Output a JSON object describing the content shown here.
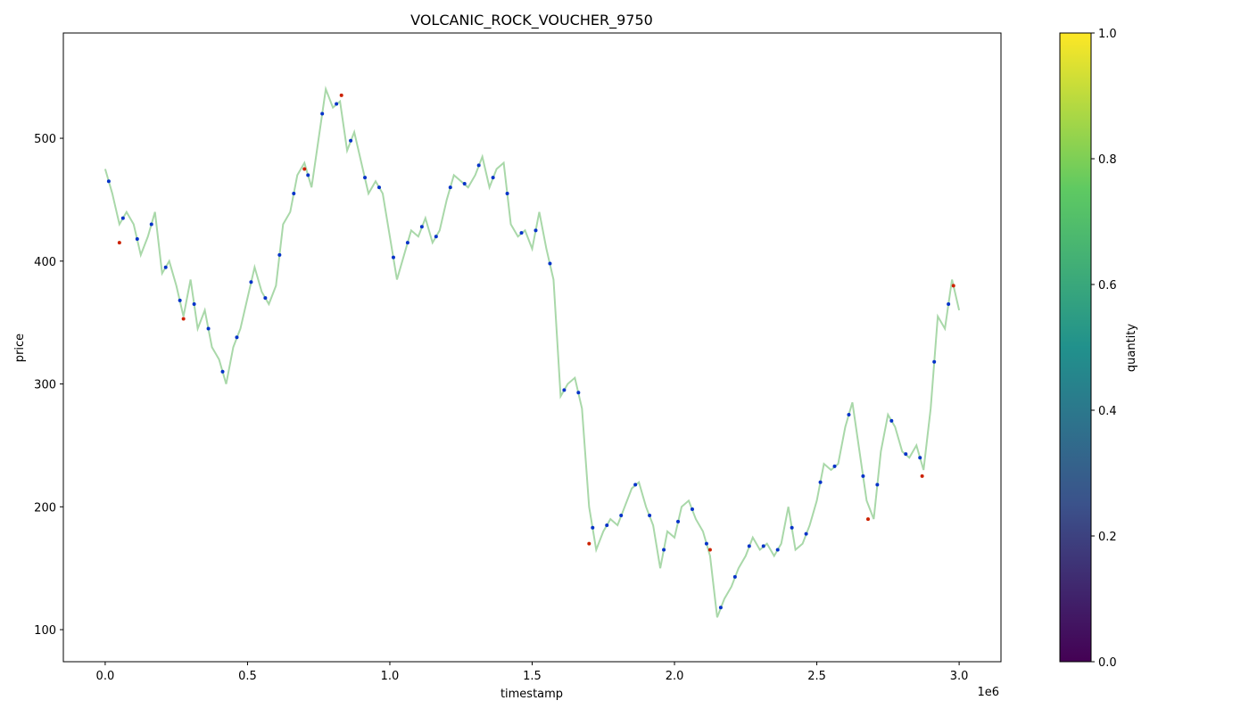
{
  "chart_data": {
    "type": "line_scatter",
    "title": "VOLCANIC_ROCK_VOUCHER_9750",
    "x_label": "timestamp",
    "y_label": "price",
    "x_offset_label": "1e6",
    "xlim": [
      -147000,
      3147000
    ],
    "ylim": [
      73.9,
      585.7
    ],
    "xticks": [
      {
        "value": 0,
        "label": "0.0"
      },
      {
        "value": 500000,
        "label": "0.5"
      },
      {
        "value": 1000000,
        "label": "1.0"
      },
      {
        "value": 1500000,
        "label": "1.5"
      },
      {
        "value": 2000000,
        "label": "2.0"
      },
      {
        "value": 2500000,
        "label": "2.5"
      },
      {
        "value": 3000000,
        "label": "3.0"
      }
    ],
    "yticks": [
      100,
      200,
      300,
      400,
      500
    ],
    "colorbar": {
      "label": "quantity",
      "colormap": "viridis",
      "lim": [
        0,
        1
      ],
      "ticks": [
        {
          "value": 0,
          "label": "0.0"
        },
        {
          "value": 0.2,
          "label": "0.2"
        },
        {
          "value": 0.4,
          "label": "0.4"
        },
        {
          "value": 0.6,
          "label": "0.6"
        },
        {
          "value": 0.8,
          "label": "0.8"
        },
        {
          "value": 1,
          "label": "1.0"
        }
      ]
    },
    "series": [
      {
        "kind": "line",
        "color": "#a9d8a9",
        "x": [
          0,
          25000,
          50000,
          75000,
          100000,
          125000,
          150000,
          175000,
          200000,
          225000,
          250000,
          275000,
          300000,
          325000,
          350000,
          375000,
          400000,
          425000,
          450000,
          475000,
          500000,
          525000,
          550000,
          575000,
          600000,
          625000,
          650000,
          675000,
          700000,
          725000,
          750000,
          775000,
          800000,
          825000,
          850000,
          875000,
          900000,
          925000,
          950000,
          975000,
          1000000,
          1025000,
          1050000,
          1075000,
          1100000,
          1125000,
          1150000,
          1175000,
          1200000,
          1225000,
          1250000,
          1275000,
          1300000,
          1325000,
          1350000,
          1375000,
          1400000,
          1425000,
          1450000,
          1475000,
          1500000,
          1525000,
          1550000,
          1575000,
          1600000,
          1625000,
          1650000,
          1675000,
          1700000,
          1725000,
          1750000,
          1775000,
          1800000,
          1825000,
          1850000,
          1875000,
          1900000,
          1925000,
          1950000,
          1975000,
          2000000,
          2025000,
          2050000,
          2075000,
          2100000,
          2125000,
          2150000,
          2175000,
          2200000,
          2225000,
          2250000,
          2275000,
          2300000,
          2325000,
          2350000,
          2375000,
          2400000,
          2425000,
          2450000,
          2475000,
          2500000,
          2525000,
          2550000,
          2575000,
          2600000,
          2625000,
          2650000,
          2675000,
          2700000,
          2725000,
          2750000,
          2775000,
          2800000,
          2825000,
          2850000,
          2875000,
          2900000,
          2925000,
          2950000,
          2975000,
          3000000
        ],
        "values": [
          475,
          455,
          430,
          440,
          430,
          405,
          420,
          440,
          390,
          400,
          380,
          355,
          385,
          345,
          360,
          330,
          320,
          300,
          330,
          345,
          370,
          395,
          375,
          365,
          380,
          430,
          440,
          470,
          480,
          460,
          500,
          540,
          525,
          530,
          490,
          505,
          480,
          455,
          465,
          455,
          420,
          385,
          405,
          425,
          420,
          435,
          415,
          425,
          450,
          470,
          465,
          460,
          470,
          485,
          460,
          475,
          480,
          430,
          420,
          425,
          410,
          440,
          410,
          385,
          290,
          300,
          305,
          280,
          200,
          165,
          180,
          190,
          185,
          200,
          215,
          220,
          200,
          185,
          150,
          180,
          175,
          200,
          205,
          190,
          180,
          160,
          110,
          125,
          135,
          150,
          160,
          175,
          165,
          170,
          160,
          170,
          200,
          165,
          170,
          185,
          205,
          235,
          230,
          235,
          265,
          285,
          245,
          205,
          190,
          245,
          275,
          265,
          245,
          240,
          250,
          230,
          280,
          355,
          345,
          385,
          360
        ]
      },
      {
        "kind": "scatter",
        "color": "#0633c8",
        "x": [
          12500,
          62500,
          112500,
          162500,
          212500,
          262500,
          312500,
          362500,
          412500,
          462500,
          512500,
          562500,
          612500,
          662500,
          712500,
          762500,
          812500,
          862500,
          912500,
          962500,
          1012500,
          1062500,
          1112500,
          1162500,
          1212500,
          1262500,
          1312500,
          1362500,
          1412500,
          1462500,
          1512500,
          1562500,
          1612500,
          1662500,
          1712500,
          1762500,
          1812500,
          1862500,
          1912500,
          1962500,
          2012500,
          2062500,
          2112500,
          2162500,
          2212500,
          2262500,
          2312500,
          2362500,
          2412500,
          2462500,
          2512500,
          2562500,
          2612500,
          2662500,
          2712500,
          2762500,
          2812500,
          2862500,
          2912500,
          2962500
        ],
        "values": [
          465,
          435,
          418,
          430,
          395,
          368,
          365,
          345,
          310,
          338,
          383,
          370,
          405,
          455,
          470,
          520,
          528,
          498,
          468,
          460,
          403,
          415,
          428,
          420,
          460,
          463,
          478,
          468,
          455,
          423,
          425,
          398,
          295,
          293,
          183,
          185,
          193,
          218,
          193,
          165,
          188,
          198,
          170,
          118,
          143,
          168,
          168,
          165,
          183,
          178,
          220,
          233,
          275,
          225,
          218,
          270,
          243,
          240,
          318,
          365
        ]
      },
      {
        "kind": "scatter",
        "color": "#cc2200",
        "x": [
          50000,
          275000,
          700000,
          830000,
          1700000,
          2125000,
          2680000,
          2870000,
          2980000
        ],
        "values": [
          415,
          353,
          475,
          535,
          170,
          165,
          190,
          225,
          380
        ]
      }
    ]
  }
}
